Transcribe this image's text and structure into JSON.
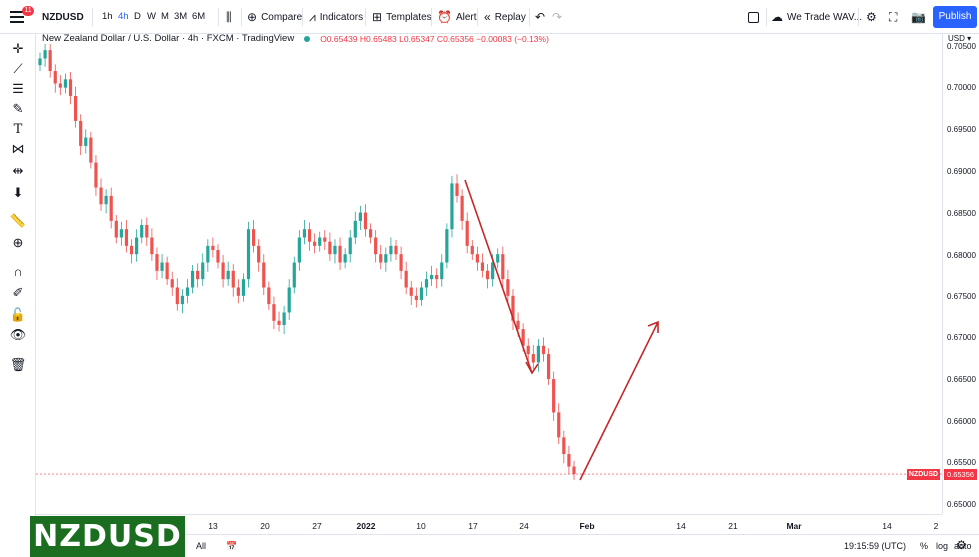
{
  "toolbar": {
    "badge_count": "11",
    "symbol": "NZDUSD",
    "intervals": [
      "1h",
      "4h",
      "D",
      "W",
      "M",
      "3M",
      "6M"
    ],
    "active_interval": "4h",
    "compare_label": "Compare",
    "indicators_label": "Indicators",
    "templates_label": "Templates",
    "alert_label": "Alert",
    "replay_label": "Replay",
    "layout_name": "We Trade WAV...",
    "publish_label": "Publish"
  },
  "legend": {
    "title": "New Zealand Dollar / U.S. Dollar · 4h · FXCM · TradingView",
    "ohlc": "O0.65439 H0.65483 L0.65347 C0.65356 −0.00083 (−0.13%)"
  },
  "price_scale": {
    "currency": "USD",
    "labels": [
      "0.70500",
      "0.70000",
      "0.69500",
      "0.69000",
      "0.68500",
      "0.68000",
      "0.67500",
      "0.67000",
      "0.66500",
      "0.66000",
      "0.65500",
      "0.65000"
    ],
    "symbol_tag": "NZDUSD",
    "last_price": "0.65356"
  },
  "time_scale": {
    "labels": [
      "13",
      "20",
      "27",
      "2022",
      "10",
      "17",
      "24",
      "Feb",
      "14",
      "21",
      "Mar",
      "14",
      "2"
    ]
  },
  "bottom_bar": {
    "range_all": "All",
    "clock": "19:15:59 (UTC)",
    "pct": "%",
    "log": "log",
    "auto": "auto"
  },
  "overlay": {
    "text": "NZDUSD"
  },
  "colors": {
    "up": "#26a69a",
    "down": "#ef5350",
    "arrow": "#c62828",
    "accent": "#2962ff"
  },
  "chart_data": {
    "type": "candlestick",
    "ylim": [
      0.649,
      0.706
    ],
    "close_series": [
      0.7035,
      0.7045,
      0.702,
      0.7005,
      0.7,
      0.701,
      0.699,
      0.696,
      0.693,
      0.694,
      0.691,
      0.688,
      0.686,
      0.687,
      0.684,
      0.682,
      0.683,
      0.681,
      0.68,
      0.682,
      0.6835,
      0.682,
      0.68,
      0.678,
      0.679,
      0.677,
      0.676,
      0.674,
      0.675,
      0.676,
      0.678,
      0.677,
      0.679,
      0.681,
      0.6805,
      0.679,
      0.677,
      0.678,
      0.676,
      0.675,
      0.677,
      0.683,
      0.681,
      0.679,
      0.676,
      0.674,
      0.672,
      0.6715,
      0.673,
      0.676,
      0.679,
      0.682,
      0.683,
      0.6815,
      0.681,
      0.682,
      0.6815,
      0.68,
      0.681,
      0.679,
      0.68,
      0.682,
      0.684,
      0.685,
      0.683,
      0.682,
      0.68,
      0.679,
      0.68,
      0.681,
      0.68,
      0.678,
      0.676,
      0.675,
      0.6745,
      0.676,
      0.677,
      0.6775,
      0.677,
      0.679,
      0.683,
      0.6885,
      0.687,
      0.684,
      0.681,
      0.68,
      0.679,
      0.678,
      0.677,
      0.679,
      0.68,
      0.677,
      0.675,
      0.672,
      0.671,
      0.669,
      0.668,
      0.667,
      0.669,
      0.668,
      0.665,
      0.661,
      0.658,
      0.656,
      0.6545,
      0.6536
    ]
  }
}
